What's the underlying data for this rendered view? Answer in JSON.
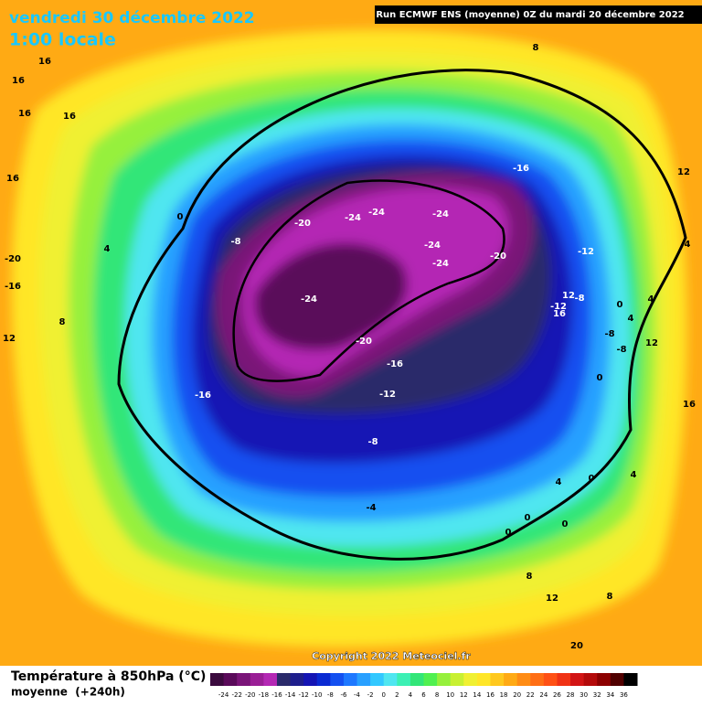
{
  "header": {
    "date": "vendredi 30 décembre 2022",
    "time": "1:00 locale",
    "run": "Run ECMWF ENS (moyenne) 0Z du mardi 20 décembre 2022"
  },
  "map": {
    "labels": [
      8,
      16,
      16,
      16,
      16,
      16,
      -20,
      -16,
      8,
      12,
      0,
      4,
      -8,
      -20,
      -24,
      -24,
      -24,
      -24,
      -24,
      -20,
      -16,
      12,
      -12,
      4,
      -24,
      -20,
      -16,
      -12,
      -16,
      -12,
      12,
      -8,
      16,
      0,
      4,
      4,
      -8,
      -8,
      12,
      0,
      16,
      -8,
      4,
      0,
      4,
      -4,
      0,
      0,
      0,
      8,
      12,
      8,
      20
    ]
  },
  "footer": {
    "title": "Température à 850hPa (°C)",
    "subtitle": "moyenne  (+240h)",
    "copyright": "Copyright 2022 Meteociel.fr"
  },
  "legend": {
    "ticks": [
      -24,
      -22,
      -20,
      -18,
      -16,
      -14,
      -12,
      -10,
      -8,
      -6,
      -4,
      -2,
      0,
      2,
      4,
      6,
      8,
      10,
      12,
      14,
      16,
      18,
      20,
      22,
      24,
      26,
      28,
      30,
      32,
      34,
      36
    ],
    "colors": [
      "#3b0a3e",
      "#5a0a5a",
      "#7a1478",
      "#9a1e96",
      "#b428b4",
      "#2a2a6a",
      "#1e1e8c",
      "#1414b4",
      "#0a2ad2",
      "#1450f0",
      "#1e78ff",
      "#28a0ff",
      "#32c8ff",
      "#50e6f0",
      "#3cf0b4",
      "#32e678",
      "#50f050",
      "#96f03c",
      "#c8f032",
      "#f0f032",
      "#ffe628",
      "#ffc81e",
      "#ffaa14",
      "#ff8c14",
      "#ff6e14",
      "#ff5014",
      "#f03214",
      "#d21414",
      "#b40a0a",
      "#8c0000",
      "#500000",
      "#000000"
    ]
  }
}
